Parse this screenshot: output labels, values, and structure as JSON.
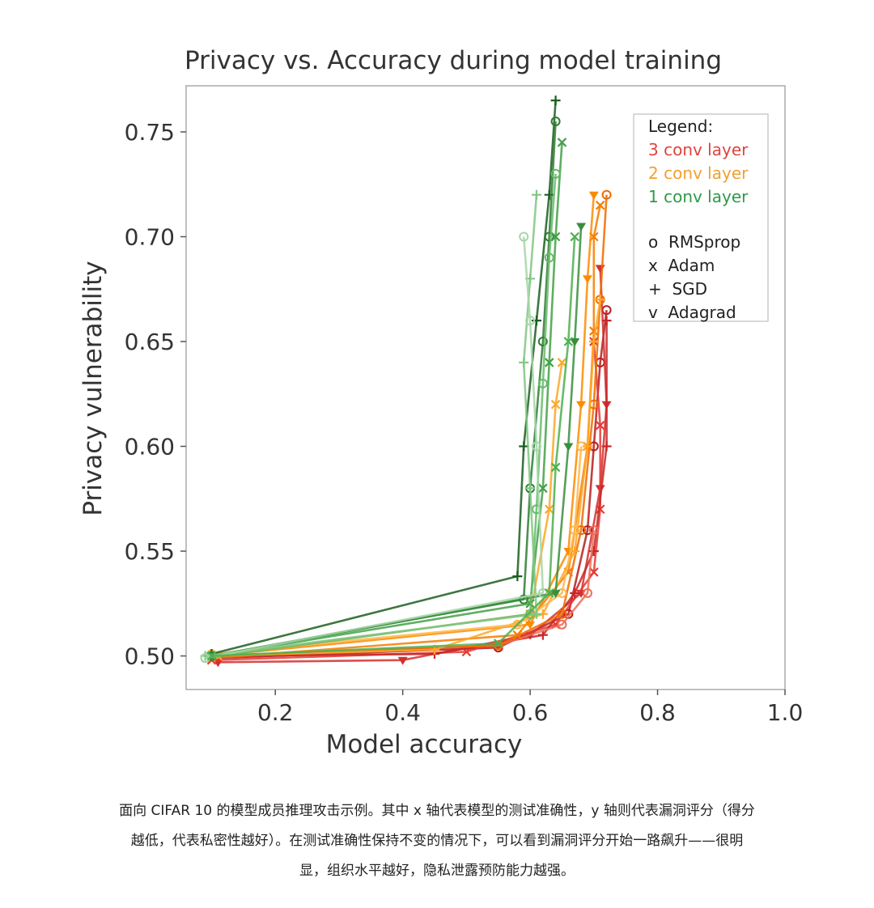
{
  "chart_data": {
    "type": "line",
    "title": "Privacy vs. Accuracy during model training",
    "xlabel": "Model accuracy",
    "ylabel": "Privacy vulnerability",
    "xlim": [
      0.06,
      1.0
    ],
    "ylim": [
      0.484,
      0.772
    ],
    "xticks": [
      "0.2",
      "0.4",
      "0.6",
      "0.8",
      "1.0"
    ],
    "yticks": [
      "0.50",
      "0.55",
      "0.60",
      "0.65",
      "0.70",
      "0.75"
    ],
    "grid": false,
    "legend": {
      "placement": "top-right",
      "title": "Legend:",
      "color_entries": [
        {
          "label": "3 conv layer",
          "color": "#e0443c"
        },
        {
          "label": "2 conv layer",
          "color": "#f0a030"
        },
        {
          "label": "1 conv layer",
          "color": "#2e9a48"
        }
      ],
      "marker_entries": [
        {
          "label": "o  RMSprop"
        },
        {
          "label": "x  Adam"
        },
        {
          "label": "+  SGD"
        },
        {
          "label": "v  Adagrad"
        }
      ]
    },
    "series": [
      {
        "color": "#b71c1c",
        "marker": "o",
        "points": [
          [
            0.11,
            0.499
          ],
          [
            0.55,
            0.504
          ],
          [
            0.66,
            0.52
          ],
          [
            0.69,
            0.56
          ],
          [
            0.7,
            0.6
          ],
          [
            0.71,
            0.64
          ],
          [
            0.72,
            0.665
          ]
        ]
      },
      {
        "color": "#d32f2f",
        "marker": "v",
        "points": [
          [
            0.11,
            0.497
          ],
          [
            0.4,
            0.498
          ],
          [
            0.6,
            0.51
          ],
          [
            0.68,
            0.53
          ],
          [
            0.71,
            0.58
          ],
          [
            0.72,
            0.62
          ],
          [
            0.71,
            0.685
          ]
        ]
      },
      {
        "color": "#e53935",
        "marker": "x",
        "points": [
          [
            0.1,
            0.498
          ],
          [
            0.5,
            0.502
          ],
          [
            0.64,
            0.515
          ],
          [
            0.7,
            0.54
          ],
          [
            0.71,
            0.57
          ],
          [
            0.71,
            0.61
          ],
          [
            0.7,
            0.65
          ]
        ]
      },
      {
        "color": "#c62828",
        "marker": "+",
        "points": [
          [
            0.1,
            0.5
          ],
          [
            0.45,
            0.501
          ],
          [
            0.62,
            0.51
          ],
          [
            0.67,
            0.53
          ],
          [
            0.7,
            0.55
          ],
          [
            0.72,
            0.6
          ],
          [
            0.72,
            0.66
          ]
        ]
      },
      {
        "color": "#ef6c57",
        "marker": "o",
        "points": [
          [
            0.1,
            0.5
          ],
          [
            0.55,
            0.505
          ],
          [
            0.65,
            0.515
          ],
          [
            0.69,
            0.53
          ],
          [
            0.7,
            0.56
          ]
        ]
      },
      {
        "color": "#ef6c00",
        "marker": "o",
        "points": [
          [
            0.1,
            0.5
          ],
          [
            0.55,
            0.505
          ],
          [
            0.65,
            0.52
          ],
          [
            0.68,
            0.56
          ],
          [
            0.7,
            0.62
          ],
          [
            0.71,
            0.67
          ],
          [
            0.72,
            0.72
          ]
        ]
      },
      {
        "color": "#f57c00",
        "marker": "x",
        "points": [
          [
            0.1,
            0.499
          ],
          [
            0.58,
            0.51
          ],
          [
            0.66,
            0.54
          ],
          [
            0.69,
            0.6
          ],
          [
            0.7,
            0.655
          ],
          [
            0.7,
            0.7
          ],
          [
            0.71,
            0.715
          ]
        ]
      },
      {
        "color": "#fb8c00",
        "marker": "v",
        "points": [
          [
            0.1,
            0.5
          ],
          [
            0.6,
            0.515
          ],
          [
            0.66,
            0.55
          ],
          [
            0.68,
            0.62
          ],
          [
            0.69,
            0.68
          ],
          [
            0.7,
            0.72
          ]
        ]
      },
      {
        "color": "#ffa726",
        "marker": "+",
        "points": [
          [
            0.1,
            0.5
          ],
          [
            0.45,
            0.503
          ],
          [
            0.62,
            0.52
          ],
          [
            0.67,
            0.55
          ],
          [
            0.69,
            0.6
          ],
          [
            0.7,
            0.65
          ],
          [
            0.71,
            0.67
          ]
        ]
      },
      {
        "color": "#ffb74d",
        "marker": "o",
        "points": [
          [
            0.1,
            0.501
          ],
          [
            0.58,
            0.515
          ],
          [
            0.65,
            0.53
          ],
          [
            0.67,
            0.56
          ],
          [
            0.68,
            0.6
          ]
        ]
      },
      {
        "color": "#f9a825",
        "marker": "x",
        "points": [
          [
            0.11,
            0.5
          ],
          [
            0.6,
            0.52
          ],
          [
            0.63,
            0.57
          ],
          [
            0.64,
            0.62
          ],
          [
            0.65,
            0.64
          ]
        ]
      },
      {
        "color": "#1b5e20",
        "marker": "+",
        "points": [
          [
            0.1,
            0.501
          ],
          [
            0.58,
            0.538
          ],
          [
            0.59,
            0.6
          ],
          [
            0.61,
            0.66
          ],
          [
            0.63,
            0.72
          ],
          [
            0.64,
            0.765
          ]
        ]
      },
      {
        "color": "#2e7d32",
        "marker": "o",
        "points": [
          [
            0.1,
            0.5
          ],
          [
            0.59,
            0.527
          ],
          [
            0.6,
            0.58
          ],
          [
            0.62,
            0.65
          ],
          [
            0.63,
            0.7
          ],
          [
            0.64,
            0.755
          ]
        ]
      },
      {
        "color": "#388e3c",
        "marker": "v",
        "points": [
          [
            0.1,
            0.5
          ],
          [
            0.64,
            0.53
          ],
          [
            0.66,
            0.6
          ],
          [
            0.67,
            0.65
          ],
          [
            0.68,
            0.705
          ]
        ]
      },
      {
        "color": "#43a047",
        "marker": "x",
        "points": [
          [
            0.1,
            0.5
          ],
          [
            0.6,
            0.525
          ],
          [
            0.62,
            0.58
          ],
          [
            0.63,
            0.64
          ],
          [
            0.64,
            0.7
          ],
          [
            0.65,
            0.745
          ]
        ]
      },
      {
        "color": "#66bb6a",
        "marker": "o",
        "points": [
          [
            0.09,
            0.499
          ],
          [
            0.6,
            0.52
          ],
          [
            0.61,
            0.57
          ],
          [
            0.62,
            0.63
          ],
          [
            0.63,
            0.69
          ],
          [
            0.64,
            0.73
          ]
        ]
      },
      {
        "color": "#81c784",
        "marker": "+",
        "points": [
          [
            0.09,
            0.5
          ],
          [
            0.61,
            0.52
          ],
          [
            0.6,
            0.58
          ],
          [
            0.59,
            0.64
          ],
          [
            0.6,
            0.68
          ],
          [
            0.61,
            0.72
          ]
        ]
      },
      {
        "color": "#a5d6a7",
        "marker": "o",
        "points": [
          [
            0.09,
            0.499
          ],
          [
            0.62,
            0.53
          ],
          [
            0.61,
            0.6
          ],
          [
            0.6,
            0.66
          ],
          [
            0.59,
            0.7
          ]
        ]
      },
      {
        "color": "#4caf50",
        "marker": "x",
        "points": [
          [
            0.1,
            0.5
          ],
          [
            0.55,
            0.506
          ],
          [
            0.63,
            0.53
          ],
          [
            0.64,
            0.59
          ],
          [
            0.66,
            0.65
          ],
          [
            0.67,
            0.7
          ]
        ]
      }
    ]
  },
  "caption": {
    "line1": "面向 CIFAR 10 的模型成员推理攻击示例。其中 x 轴代表模型的测试准确性，y 轴则代表漏洞评分（得分",
    "line2": "越低，代表私密性越好）。在测试准确性保持不变的情况下，可以看到漏洞评分开始一路飙升——很明",
    "line3": "显，组织水平越好，隐私泄露预防能力越强。"
  }
}
